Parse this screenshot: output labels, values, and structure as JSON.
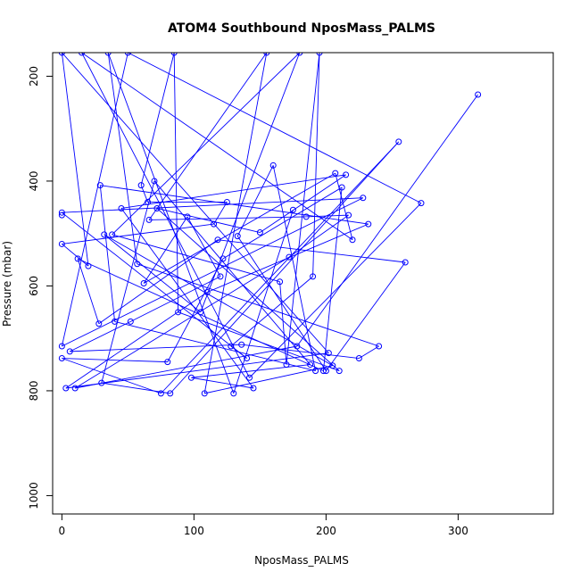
{
  "chart_data": {
    "type": "line",
    "title": "ATOM4 Southbound NposMass_PALMS",
    "xlabel": "NposMass_PALMS",
    "ylabel": "Pressure (mbar)",
    "xlim": [
      -7,
      372
    ],
    "ylim": [
      1035,
      155
    ],
    "y_reversed": true,
    "x_ticks": [
      0,
      100,
      200,
      300
    ],
    "y_ticks": [
      200,
      400,
      600,
      800,
      1000
    ],
    "grid": false,
    "legend": "none",
    "colors": {
      "series": "#0000ff",
      "axis": "#000000",
      "background": "#ffffff"
    },
    "marker": "open-circle",
    "series": [
      {
        "values": [
          [
            0,
            155
          ],
          [
            0,
            460
          ],
          [
            0,
            465
          ],
          [
            0,
            520
          ],
          [
            0,
            715
          ],
          [
            0,
            738
          ],
          [
            3,
            795
          ],
          [
            6,
            725
          ],
          [
            10,
            795
          ],
          [
            12,
            548
          ],
          [
            15,
            155
          ],
          [
            20,
            562
          ],
          [
            28,
            672
          ],
          [
            29,
            408
          ],
          [
            30,
            785
          ],
          [
            32,
            502
          ],
          [
            35,
            155
          ],
          [
            38,
            502
          ],
          [
            40,
            668
          ],
          [
            45,
            452
          ],
          [
            50,
            155
          ],
          [
            52,
            668
          ],
          [
            57,
            558
          ],
          [
            60,
            408
          ],
          [
            62,
            595
          ],
          [
            65,
            440
          ],
          [
            66,
            474
          ],
          [
            70,
            400
          ],
          [
            72,
            452
          ],
          [
            75,
            805
          ],
          [
            80,
            745
          ],
          [
            82,
            805
          ],
          [
            85,
            155
          ],
          [
            88,
            650
          ],
          [
            95,
            468
          ],
          [
            98,
            775
          ],
          [
            105,
            650
          ],
          [
            108,
            805
          ],
          [
            110,
            612
          ],
          [
            115,
            482
          ],
          [
            118,
            512
          ],
          [
            120,
            582
          ],
          [
            122,
            548
          ],
          [
            125,
            440
          ],
          [
            128,
            715
          ],
          [
            130,
            805
          ],
          [
            133,
            505
          ],
          [
            136,
            712
          ],
          [
            140,
            738
          ],
          [
            142,
            775
          ],
          [
            145,
            795
          ],
          [
            150,
            498
          ],
          [
            155,
            155
          ],
          [
            160,
            370
          ],
          [
            165,
            592
          ],
          [
            170,
            750
          ],
          [
            172,
            545
          ],
          [
            175,
            455
          ],
          [
            178,
            715
          ],
          [
            180,
            155
          ],
          [
            185,
            468
          ],
          [
            188,
            750
          ],
          [
            190,
            582
          ],
          [
            192,
            762
          ],
          [
            195,
            155
          ],
          [
            198,
            762
          ],
          [
            200,
            762
          ],
          [
            202,
            728
          ],
          [
            205,
            752
          ],
          [
            207,
            385
          ],
          [
            210,
            762
          ],
          [
            212,
            412
          ],
          [
            215,
            388
          ],
          [
            217,
            465
          ],
          [
            220,
            512
          ],
          [
            225,
            738
          ],
          [
            228,
            432
          ],
          [
            232,
            482
          ],
          [
            240,
            715
          ],
          [
            255,
            325
          ],
          [
            260,
            555
          ],
          [
            272,
            442
          ],
          [
            315,
            235
          ]
        ]
      }
    ]
  }
}
